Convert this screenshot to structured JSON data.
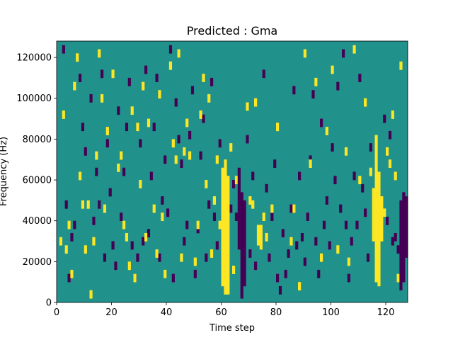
{
  "chart_data": {
    "type": "heatmap",
    "title": "Predicted : Gma",
    "xlabel": "Time step",
    "ylabel": "Frequency (Hz)",
    "xlim": [
      0,
      128
    ],
    "ylim": [
      0,
      128000
    ],
    "x_ticks": [
      0,
      20,
      40,
      60,
      80,
      100,
      120
    ],
    "x_tick_labels": [
      "0",
      "20",
      "40",
      "60",
      "80",
      "100",
      "120"
    ],
    "y_ticks": [
      0,
      20000,
      40000,
      60000,
      80000,
      100000,
      120000
    ],
    "y_tick_labels": [
      "0",
      "20000",
      "40000",
      "60000",
      "80000",
      "100000",
      "120000"
    ],
    "grid": false,
    "colormap": {
      "background": "#21918c",
      "high": "#fde725",
      "low": "#440154"
    },
    "time_bins": 128,
    "freq_bins": 64,
    "bin_height_hz": 2000,
    "high_columns": [
      {
        "t": 60,
        "ranges": [
          [
            8000,
            66000
          ]
        ]
      },
      {
        "t": 61,
        "ranges": [
          [
            4000,
            70000
          ]
        ]
      },
      {
        "t": 62,
        "ranges": [
          [
            4000,
            62000
          ]
        ]
      },
      {
        "t": 115,
        "ranges": [
          [
            30000,
            56000
          ]
        ]
      },
      {
        "t": 116,
        "ranges": [
          [
            10000,
            82000
          ]
        ]
      },
      {
        "t": 117,
        "ranges": [
          [
            8000,
            64000
          ]
        ]
      },
      {
        "t": 118,
        "ranges": [
          [
            30000,
            52000
          ]
        ]
      },
      {
        "t": 73,
        "ranges": [
          [
            28000,
            38000
          ]
        ]
      },
      {
        "t": 74,
        "ranges": [
          [
            26000,
            38000
          ]
        ]
      }
    ],
    "low_columns": [
      {
        "t": 66,
        "ranges": [
          [
            26000,
            66000
          ]
        ]
      },
      {
        "t": 67,
        "ranges": [
          [
            2000,
            54000
          ]
        ]
      },
      {
        "t": 68,
        "ranges": [
          [
            8000,
            50000
          ]
        ]
      },
      {
        "t": 126,
        "ranges": [
          [
            10000,
            54000
          ]
        ]
      },
      {
        "t": 127,
        "ranges": [
          [
            22000,
            52000
          ]
        ]
      },
      {
        "t": 125,
        "ranges": [
          [
            6000,
            50000
          ]
        ]
      }
    ],
    "high_cells": [
      [
        1,
        28000
      ],
      [
        2,
        90000
      ],
      [
        3,
        24000
      ],
      [
        4,
        36000
      ],
      [
        5,
        12000
      ],
      [
        6,
        104000
      ],
      [
        7,
        118000
      ],
      [
        8,
        60000
      ],
      [
        9,
        46000
      ],
      [
        10,
        24000
      ],
      [
        11,
        46000
      ],
      [
        12,
        2000
      ],
      [
        13,
        28000
      ],
      [
        14,
        70000
      ],
      [
        15,
        120000
      ],
      [
        16,
        98000
      ],
      [
        17,
        44000
      ],
      [
        18,
        82000
      ],
      [
        20,
        110000
      ],
      [
        22,
        64000
      ],
      [
        23,
        70000
      ],
      [
        24,
        36000
      ],
      [
        25,
        30000
      ],
      [
        26,
        16000
      ],
      [
        27,
        92000
      ],
      [
        28,
        10000
      ],
      [
        29,
        84000
      ],
      [
        30,
        56000
      ],
      [
        31,
        104000
      ],
      [
        32,
        30000
      ],
      [
        33,
        86000
      ],
      [
        35,
        44000
      ],
      [
        36,
        22000
      ],
      [
        37,
        100000
      ],
      [
        38,
        40000
      ],
      [
        39,
        12000
      ],
      [
        41,
        114000
      ],
      [
        42,
        76000
      ],
      [
        43,
        68000
      ],
      [
        44,
        120000
      ],
      [
        45,
        20000
      ],
      [
        46,
        72000
      ],
      [
        47,
        86000
      ],
      [
        48,
        70000
      ],
      [
        50,
        18000
      ],
      [
        51,
        36000
      ],
      [
        52,
        90000
      ],
      [
        53,
        108000
      ],
      [
        54,
        56000
      ],
      [
        55,
        98000
      ],
      [
        56,
        22000
      ],
      [
        57,
        48000
      ],
      [
        58,
        68000
      ],
      [
        59,
        36000
      ],
      [
        63,
        74000
      ],
      [
        64,
        14000
      ],
      [
        65,
        58000
      ],
      [
        69,
        94000
      ],
      [
        70,
        48000
      ],
      [
        71,
        46000
      ],
      [
        72,
        96000
      ],
      [
        75,
        40000
      ],
      [
        76,
        30000
      ],
      [
        78,
        44000
      ],
      [
        80,
        84000
      ],
      [
        85,
        28000
      ],
      [
        86,
        44000
      ],
      [
        88,
        6000
      ],
      [
        90,
        120000
      ],
      [
        92,
        66000
      ],
      [
        94,
        106000
      ],
      [
        96,
        20000
      ],
      [
        98,
        82000
      ],
      [
        100,
        112000
      ],
      [
        102,
        24000
      ],
      [
        105,
        72000
      ],
      [
        106,
        18000
      ],
      [
        108,
        122000
      ],
      [
        110,
        58000
      ],
      [
        112,
        96000
      ],
      [
        114,
        62000
      ],
      [
        119,
        42000
      ],
      [
        120,
        72000
      ],
      [
        121,
        66000
      ],
      [
        122,
        90000
      ],
      [
        123,
        60000
      ],
      [
        124,
        10000
      ],
      [
        125,
        114000
      ]
    ],
    "low_cells": [
      [
        2,
        122000
      ],
      [
        3,
        46000
      ],
      [
        4,
        10000
      ],
      [
        5,
        30000
      ],
      [
        6,
        36000
      ],
      [
        8,
        108000
      ],
      [
        9,
        84000
      ],
      [
        10,
        72000
      ],
      [
        12,
        98000
      ],
      [
        13,
        38000
      ],
      [
        14,
        62000
      ],
      [
        15,
        46000
      ],
      [
        16,
        110000
      ],
      [
        17,
        20000
      ],
      [
        18,
        76000
      ],
      [
        19,
        52000
      ],
      [
        20,
        26000
      ],
      [
        21,
        16000
      ],
      [
        22,
        92000
      ],
      [
        23,
        40000
      ],
      [
        24,
        62000
      ],
      [
        25,
        84000
      ],
      [
        26,
        106000
      ],
      [
        27,
        26000
      ],
      [
        28,
        10000
      ],
      [
        29,
        20000
      ],
      [
        30,
        76000
      ],
      [
        31,
        28000
      ],
      [
        32,
        112000
      ],
      [
        33,
        32000
      ],
      [
        34,
        60000
      ],
      [
        35,
        84000
      ],
      [
        36,
        108000
      ],
      [
        37,
        20000
      ],
      [
        38,
        48000
      ],
      [
        39,
        68000
      ],
      [
        40,
        42000
      ],
      [
        41,
        122000
      ],
      [
        42,
        10000
      ],
      [
        43,
        96000
      ],
      [
        44,
        78000
      ],
      [
        45,
        66000
      ],
      [
        46,
        28000
      ],
      [
        47,
        36000
      ],
      [
        48,
        80000
      ],
      [
        49,
        102000
      ],
      [
        50,
        12000
      ],
      [
        51,
        34000
      ],
      [
        52,
        70000
      ],
      [
        53,
        88000
      ],
      [
        54,
        20000
      ],
      [
        55,
        46000
      ],
      [
        56,
        106000
      ],
      [
        57,
        40000
      ],
      [
        58,
        26000
      ],
      [
        59,
        76000
      ],
      [
        63,
        44000
      ],
      [
        64,
        56000
      ],
      [
        65,
        40000
      ],
      [
        69,
        78000
      ],
      [
        70,
        22000
      ],
      [
        71,
        60000
      ],
      [
        72,
        16000
      ],
      [
        75,
        110000
      ],
      [
        76,
        54000
      ],
      [
        77,
        20000
      ],
      [
        78,
        40000
      ],
      [
        79,
        66000
      ],
      [
        80,
        10000
      ],
      [
        81,
        4000
      ],
      [
        82,
        32000
      ],
      [
        83,
        12000
      ],
      [
        84,
        22000
      ],
      [
        85,
        44000
      ],
      [
        86,
        102000
      ],
      [
        87,
        26000
      ],
      [
        88,
        60000
      ],
      [
        89,
        30000
      ],
      [
        90,
        18000
      ],
      [
        91,
        40000
      ],
      [
        92,
        68000
      ],
      [
        93,
        100000
      ],
      [
        94,
        28000
      ],
      [
        95,
        12000
      ],
      [
        96,
        86000
      ],
      [
        97,
        36000
      ],
      [
        98,
        48000
      ],
      [
        99,
        26000
      ],
      [
        100,
        74000
      ],
      [
        101,
        58000
      ],
      [
        102,
        104000
      ],
      [
        103,
        44000
      ],
      [
        104,
        120000
      ],
      [
        105,
        36000
      ],
      [
        106,
        10000
      ],
      [
        107,
        28000
      ],
      [
        108,
        60000
      ],
      [
        109,
        36000
      ],
      [
        110,
        108000
      ],
      [
        111,
        54000
      ],
      [
        112,
        42000
      ],
      [
        113,
        20000
      ],
      [
        114,
        74000
      ],
      [
        119,
        88000
      ],
      [
        120,
        38000
      ],
      [
        121,
        80000
      ],
      [
        122,
        28000
      ],
      [
        123,
        30000
      ],
      [
        124,
        24000
      ]
    ]
  }
}
